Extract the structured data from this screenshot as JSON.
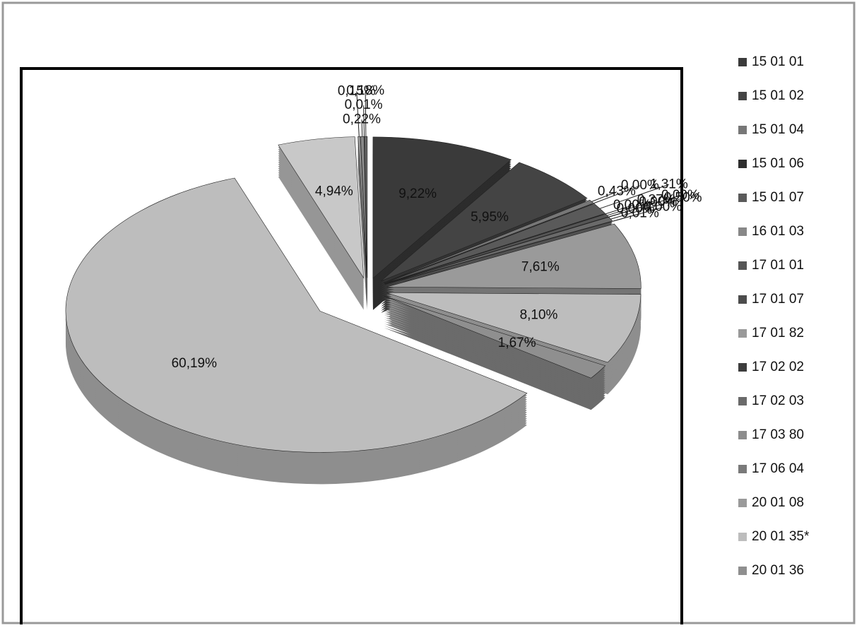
{
  "chart_data": {
    "type": "pie",
    "categories": [
      "15 01 01",
      "15 01 02",
      "15 01 04",
      "15 01 06",
      "15 01 07",
      "16 01 03",
      "17 01 01",
      "17 01 07",
      "17 01 82",
      "17 02 02",
      "17 02 03",
      "17 03 80",
      "17 06 04",
      "20 01 08",
      "20 01 35*",
      "20 01 36",
      null,
      null,
      null,
      null,
      null,
      null
    ],
    "values": [
      9.22,
      5.95,
      0.43,
      0.0,
      1.31,
      0.0,
      0.37,
      0.0,
      0.0,
      0.0,
      0.5,
      0.01,
      0.0,
      7.61,
      8.1,
      1.67,
      60.19,
      4.94,
      0.15,
      0.22,
      0.01,
      0.18
    ],
    "value_labels": [
      "9,22%",
      "5,95%",
      "0,43%",
      "0,00%",
      "1,31%",
      "0,00%",
      "0,37%",
      "0,00%",
      "0,00%",
      "0,00%",
      "0,50%",
      "0,01%",
      "0,00%",
      "7,61%",
      "8,10%",
      "1,67%",
      "60,19%",
      "4,94%",
      "0,15%",
      "0,22%",
      "0,01%",
      "0,18%"
    ],
    "colors": [
      "#3a3a3a",
      "#444444",
      "#777777",
      "#2e2e2e",
      "#5a5a5a",
      "#888888",
      "#555555",
      "#4c4c4c",
      "#999999",
      "#3d3d3d",
      "#6a6a6a",
      "#8c8c8c",
      "#7a7a7a",
      "#9a9a9a",
      "#bdbdbd",
      "#8f8f8f",
      "#bdbdbd",
      "#c8c8c8",
      "#999999",
      "#888888",
      "#777777",
      "#666666"
    ]
  }
}
